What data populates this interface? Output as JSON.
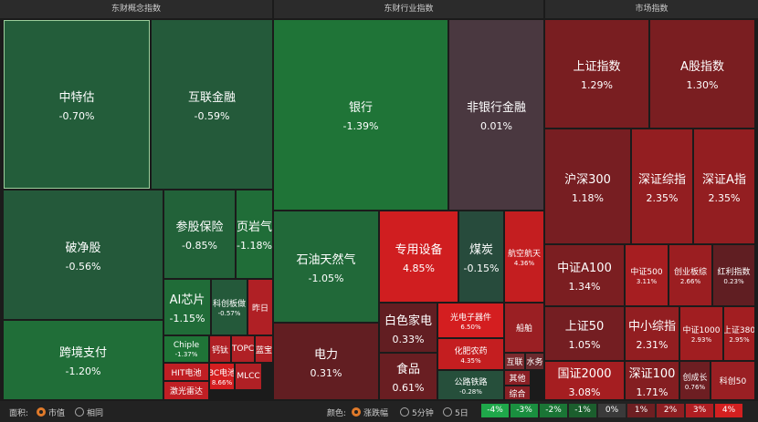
{
  "panels": [
    {
      "title": "东财概念指数",
      "tiles": [
        {
          "name": "中特估",
          "change": "-0.70%"
        },
        {
          "name": "互联金融",
          "change": "-0.59%"
        },
        {
          "name": "破净股",
          "change": "-0.56%"
        },
        {
          "name": "参股保险",
          "change": "-0.85%"
        },
        {
          "name": "页岩气",
          "change": "-1.18%"
        },
        {
          "name": "跨境支付",
          "change": "-1.20%"
        },
        {
          "name": "AI芯片",
          "change": "-1.15%"
        },
        {
          "name": "科创板做",
          "change": "-0.57%"
        },
        {
          "name": "昨日"
        },
        {
          "name": "Chiple",
          "change": "-1.37%"
        },
        {
          "name": "钙钛"
        },
        {
          "name": "TOPC"
        },
        {
          "name": "蓝宝"
        },
        {
          "name": "HIT电池"
        },
        {
          "name": "BC电池",
          "change": "8.66%"
        },
        {
          "name": "MLCC"
        },
        {
          "name": "激光雷达"
        }
      ]
    },
    {
      "title": "东财行业指数",
      "tiles": [
        {
          "name": "银行",
          "change": "-1.39%"
        },
        {
          "name": "非银行金融",
          "change": "0.01%"
        },
        {
          "name": "石油天然气",
          "change": "-1.05%"
        },
        {
          "name": "专用设备",
          "change": "4.85%"
        },
        {
          "name": "煤炭",
          "change": "-0.15%"
        },
        {
          "name": "航空航天",
          "change": "4.36%"
        },
        {
          "name": "电力",
          "change": "0.31%"
        },
        {
          "name": "白色家电",
          "change": "0.33%"
        },
        {
          "name": "光电子器件",
          "change": "6.50%"
        },
        {
          "name": "船舶"
        },
        {
          "name": "化肥农药",
          "change": "4.35%"
        },
        {
          "name": "食品",
          "change": "0.61%"
        },
        {
          "name": "互联"
        },
        {
          "name": "水务"
        },
        {
          "name": "公路铁路",
          "change": "-0.28%"
        },
        {
          "name": "其他"
        },
        {
          "name": "综合"
        }
      ]
    },
    {
      "title": "市场指数",
      "tiles": [
        {
          "name": "上证指数",
          "change": "1.29%"
        },
        {
          "name": "A股指数",
          "change": "1.30%"
        },
        {
          "name": "沪深300",
          "change": "1.18%"
        },
        {
          "name": "深证综指",
          "change": "2.35%"
        },
        {
          "name": "深证A指",
          "change": "2.35%"
        },
        {
          "name": "中证A100",
          "change": "1.34%"
        },
        {
          "name": "中证500",
          "change": "3.11%"
        },
        {
          "name": "创业板综",
          "change": "2.66%"
        },
        {
          "name": "红利指数",
          "change": "0.23%"
        },
        {
          "name": "上证50",
          "change": "1.05%"
        },
        {
          "name": "中小综指",
          "change": "2.31%"
        },
        {
          "name": "中证1000",
          "change": "2.93%"
        },
        {
          "name": "上证380",
          "change": "2.95%"
        },
        {
          "name": "国证2000",
          "change": "3.08%"
        },
        {
          "name": "深证100",
          "change": "1.71%"
        },
        {
          "name": "创成长",
          "change": "0.76%"
        },
        {
          "name": "科创50"
        }
      ]
    }
  ],
  "footer": {
    "area_label": "面积:",
    "area_options": [
      "市值",
      "相同"
    ],
    "color_label": "颜色:",
    "color_options": [
      "涨跌幅",
      "5分钟",
      "5日"
    ],
    "legend": [
      "-4%",
      "-3%",
      "-2%",
      "-1%",
      "0%",
      "1%",
      "2%",
      "3%",
      "4%"
    ]
  }
}
